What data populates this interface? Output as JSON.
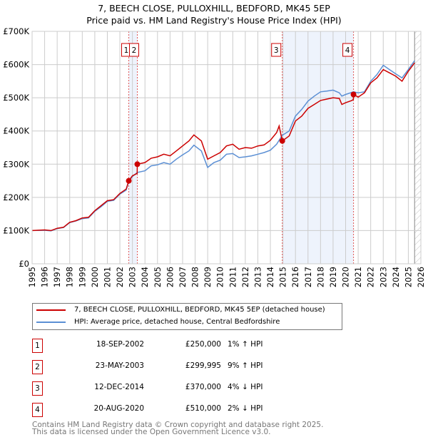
{
  "chart_data": {
    "type": "line",
    "title": "7, BEECH CLOSE, PULLOXHILL, BEDFORD, MK45 5EP",
    "subtitle": "Price paid vs. HM Land Registry's House Price Index (HPI)",
    "xlim": [
      1995,
      2026
    ],
    "ylim": [
      0,
      700000
    ],
    "y_ticks": [
      0,
      100000,
      200000,
      300000,
      400000,
      500000,
      600000,
      700000
    ],
    "y_tick_labels": [
      "£0",
      "£100K",
      "£200K",
      "£300K",
      "£400K",
      "£500K",
      "£600K",
      "£700K"
    ],
    "x_ticks": [
      1995,
      1996,
      1997,
      1998,
      1999,
      2000,
      2001,
      2002,
      2003,
      2004,
      2005,
      2006,
      2007,
      2008,
      2009,
      2010,
      2011,
      2012,
      2013,
      2014,
      2015,
      2016,
      2017,
      2018,
      2019,
      2020,
      2021,
      2022,
      2023,
      2024,
      2025,
      2026
    ],
    "grid": true,
    "hatch_from": 2025.5,
    "shaded_ranges": [
      [
        2002.71,
        2003.39
      ],
      [
        2014.95,
        2020.63
      ]
    ],
    "series": [
      {
        "name": "7, BEECH CLOSE, PULLOXHILL, BEDFORD, MK45 5EP (detached house)",
        "color": "#cc0000",
        "x": [
          1995,
          1996,
          1996.5,
          1997,
          1997.5,
          1998,
          1998.5,
          1999,
          1999.5,
          2000,
          2000.5,
          2001,
          2001.5,
          2002,
          2002.5,
          2002.71,
          2003,
          2003.38,
          2003.39,
          2004,
          2004.5,
          2005,
          2005.5,
          2006,
          2006.5,
          2007,
          2007.5,
          2007.9,
          2008.5,
          2009,
          2009.5,
          2010,
          2010.5,
          2011,
          2011.5,
          2012,
          2012.5,
          2013,
          2013.5,
          2014,
          2014.5,
          2014.7,
          2014.95,
          2015.5,
          2016,
          2016.5,
          2017,
          2017.5,
          2018,
          2018.5,
          2019,
          2019.5,
          2019.7,
          2020,
          2020.5,
          2020.62,
          2020.63,
          2021,
          2021.5,
          2022,
          2022.5,
          2023,
          2023.5,
          2024,
          2024.5,
          2025,
          2025.5
        ],
        "y": [
          100000,
          102000,
          100000,
          107000,
          110000,
          125000,
          130000,
          138000,
          140000,
          160000,
          175000,
          190000,
          193000,
          212000,
          225000,
          250000,
          265000,
          272000,
          300000,
          305000,
          318000,
          322000,
          330000,
          325000,
          340000,
          355000,
          370000,
          388000,
          370000,
          315000,
          325000,
          335000,
          355000,
          360000,
          345000,
          350000,
          348000,
          355000,
          358000,
          372000,
          395000,
          415000,
          370000,
          385000,
          430000,
          445000,
          468000,
          480000,
          492000,
          496000,
          500000,
          498000,
          480000,
          485000,
          492000,
          495000,
          510000,
          502000,
          515000,
          545000,
          560000,
          585000,
          575000,
          565000,
          550000,
          580000,
          605000
        ]
      },
      {
        "name": "HPI: Average price, detached house, Central Bedfordshire",
        "color": "#5b8fd4",
        "x": [
          1995,
          1996,
          1996.5,
          1997,
          1997.5,
          1998,
          1998.5,
          1999,
          1999.5,
          2000,
          2000.5,
          2001,
          2001.5,
          2002,
          2002.5,
          2002.71,
          2003,
          2003.39,
          2004,
          2004.5,
          2005,
          2005.5,
          2006,
          2006.5,
          2007,
          2007.5,
          2007.9,
          2008.5,
          2009,
          2009.5,
          2010,
          2010.5,
          2011,
          2011.5,
          2012,
          2012.5,
          2013,
          2013.5,
          2014,
          2014.5,
          2014.95,
          2015.5,
          2016,
          2016.5,
          2017,
          2017.5,
          2018,
          2018.5,
          2019,
          2019.5,
          2019.7,
          2020,
          2020.63,
          2021,
          2021.5,
          2022,
          2022.5,
          2023,
          2023.5,
          2024,
          2024.5,
          2025,
          2025.5
        ],
        "y": [
          100000,
          101000,
          99000,
          106000,
          109000,
          124000,
          129000,
          136000,
          138000,
          158000,
          172000,
          188000,
          191000,
          210000,
          222000,
          248000,
          263000,
          275000,
          280000,
          295000,
          298000,
          305000,
          300000,
          315000,
          328000,
          340000,
          357000,
          340000,
          290000,
          305000,
          312000,
          330000,
          332000,
          320000,
          322000,
          325000,
          330000,
          335000,
          342000,
          360000,
          387000,
          400000,
          445000,
          465000,
          490000,
          505000,
          518000,
          520000,
          523000,
          515000,
          505000,
          510000,
          518000,
          515000,
          518000,
          550000,
          570000,
          598000,
          585000,
          572000,
          560000,
          585000,
          612000
        ]
      }
    ],
    "sales": [
      {
        "label": "1",
        "x": 2002.71,
        "price": 250000
      },
      {
        "label": "2",
        "x": 2003.39,
        "price": 299995
      },
      {
        "label": "3",
        "x": 2014.95,
        "price": 370000
      },
      {
        "label": "4",
        "x": 2020.63,
        "price": 510000
      }
    ]
  },
  "legend": {
    "property": "7, BEECH CLOSE, PULLOXHILL, BEDFORD, MK45 5EP (detached house)",
    "hpi": "HPI: Average price, detached house, Central Bedfordshire"
  },
  "table": [
    {
      "num": "1",
      "date": "18-SEP-2002",
      "price": "£250,000",
      "hpi": "1% ↑ HPI"
    },
    {
      "num": "2",
      "date": "23-MAY-2003",
      "price": "£299,995",
      "hpi": "9% ↑ HPI"
    },
    {
      "num": "3",
      "date": "12-DEC-2014",
      "price": "£370,000",
      "hpi": "4% ↓ HPI"
    },
    {
      "num": "4",
      "date": "20-AUG-2020",
      "price": "£510,000",
      "hpi": "2% ↓ HPI"
    }
  ],
  "footer": {
    "line1": "Contains HM Land Registry data © Crown copyright and database right 2025.",
    "line2": "This data is licensed under the Open Government Licence v3.0."
  }
}
